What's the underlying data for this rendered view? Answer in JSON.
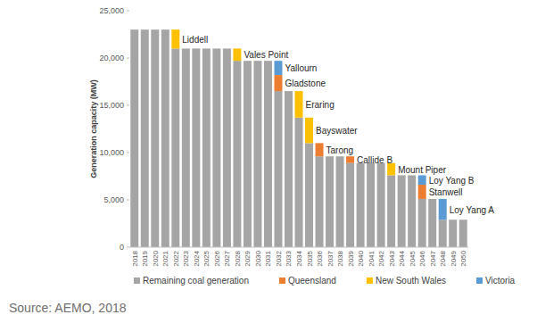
{
  "chart_data": {
    "type": "bar",
    "stacked": true,
    "grid": false,
    "legend": "bottom",
    "y_label": "Generation capacity (MW)",
    "source": "Source: AEMO, 2018",
    "categories": [
      "2018",
      "2019",
      "2020",
      "2021",
      "2022",
      "2023",
      "2024",
      "2025",
      "2026",
      "2027",
      "2028",
      "2029",
      "2030",
      "2031",
      "2032",
      "2033",
      "2034",
      "2035",
      "2036",
      "2037",
      "2038",
      "2039",
      "2040",
      "2041",
      "2042",
      "2043",
      "2044",
      "2045",
      "2046",
      "2047",
      "2048",
      "2049",
      "2050"
    ],
    "series": [
      {
        "name": "Remaining coal generation",
        "color": "#a5a5a5",
        "values": [
          23000,
          23000,
          23000,
          23000,
          21000,
          21000,
          21000,
          21000,
          21000,
          21000,
          19700,
          19700,
          19700,
          19700,
          16500,
          16500,
          13700,
          11000,
          9600,
          9600,
          9600,
          8900,
          8900,
          8900,
          8900,
          7600,
          7600,
          7600,
          5100,
          5100,
          2900,
          2900,
          2900
        ]
      },
      {
        "name": "Queensland",
        "color": "#ed7d31",
        "values": [
          null,
          null,
          null,
          null,
          null,
          null,
          null,
          null,
          null,
          null,
          null,
          null,
          null,
          null,
          1700,
          null,
          null,
          null,
          1400,
          null,
          null,
          700,
          null,
          null,
          null,
          null,
          null,
          null,
          1500,
          null,
          null,
          null,
          null
        ]
      },
      {
        "name": "New South Wales",
        "color": "#ffc000",
        "values": [
          null,
          null,
          null,
          null,
          2000,
          null,
          null,
          null,
          null,
          null,
          1300,
          null,
          null,
          null,
          null,
          null,
          2800,
          2700,
          null,
          null,
          null,
          null,
          null,
          null,
          null,
          1300,
          null,
          null,
          null,
          null,
          null,
          null,
          null
        ]
      },
      {
        "name": "Victoria",
        "color": "#5b9bd5",
        "values": [
          null,
          null,
          null,
          null,
          null,
          null,
          null,
          null,
          null,
          null,
          null,
          null,
          null,
          null,
          1500,
          null,
          null,
          null,
          null,
          null,
          null,
          null,
          null,
          null,
          null,
          null,
          null,
          null,
          1000,
          null,
          2200,
          null,
          null
        ]
      }
    ],
    "annotations": [
      {
        "text": "Liddell",
        "x": "2022",
        "series": "New South Wales"
      },
      {
        "text": "Vales Point",
        "x": "2028",
        "series": "New South Wales"
      },
      {
        "text": "Yallourn",
        "x": "2032",
        "series": "Victoria"
      },
      {
        "text": "Gladstone",
        "x": "2032",
        "series": "Queensland"
      },
      {
        "text": "Eraring",
        "x": "2034",
        "series": "New South Wales"
      },
      {
        "text": "Bayswater",
        "x": "2035",
        "series": "New South Wales"
      },
      {
        "text": "Tarong",
        "x": "2036",
        "series": "Queensland"
      },
      {
        "text": "Callide B",
        "x": "2039",
        "series": "Queensland"
      },
      {
        "text": "Mount Piper",
        "x": "2043",
        "series": "New South Wales"
      },
      {
        "text": "Loy Yang B",
        "x": "2046",
        "series": "Victoria"
      },
      {
        "text": "Stanwell",
        "x": "2046",
        "series": "Queensland"
      },
      {
        "text": "Loy Yang A",
        "x": "2048",
        "series": "Victoria"
      }
    ],
    "ylim": [
      0,
      25000
    ],
    "yticks": [
      0,
      {
        "value": 5000,
        "label": "5,000"
      },
      {
        "value": 10000,
        "label": "10,000"
      },
      {
        "value": 15000,
        "label": "15,000"
      },
      {
        "value": 20000,
        "label": "20,000"
      },
      {
        "value": 25000,
        "label": "25,000"
      }
    ]
  }
}
